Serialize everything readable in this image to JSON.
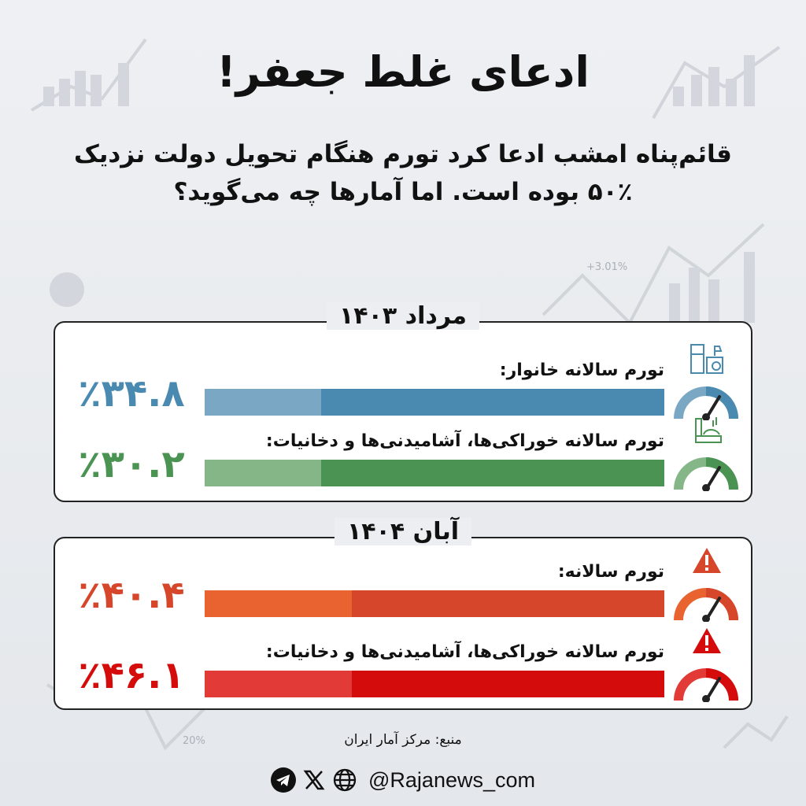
{
  "title": "ادعای غلط جعفر!",
  "subtitle": [
    "قائم‌پناه امشب ادعا کرد تورم هنگام تحویل دولت نزدیک",
    "۵۰٪ بوده است. اما آمارها چه می‌گوید؟"
  ],
  "background_labels": {
    "a": "+3.01%",
    "b": "20%"
  },
  "chart_data": {
    "type": "bar",
    "panels": [
      {
        "title": "مرداد ۱۴۰۳",
        "rows": [
          {
            "label": "تورم سالانه خانوار:",
            "value": 34.8,
            "value_text": "٪۳۴.۸",
            "color": "#4a8ab0",
            "light": "#7aa8c4",
            "icon": "home-appliances-icon"
          },
          {
            "label": "تورم سالانه خوراکی‌ها، آشامیدنی‌ها و دخانیات:",
            "value": 30.2,
            "value_text": "٪۳۰.۲",
            "color": "#4a9352",
            "light": "#84b688",
            "icon": "food-icon"
          }
        ]
      },
      {
        "title": "آبان ۱۴۰۴",
        "rows": [
          {
            "label": "تورم سالانه:",
            "value": 40.4,
            "value_text": "٪۴۰.۴",
            "color": "#d6462a",
            "light": "#e8632f",
            "icon": "warning-icon"
          },
          {
            "label": "تورم سالانه خوراکی‌ها، آشامیدنی‌ها و دخانیات:",
            "value": 46.1,
            "value_text": "٪۴۶.۱",
            "color": "#d40c0c",
            "light": "#e23b37",
            "icon": "warning-icon"
          }
        ]
      }
    ]
  },
  "source": "منبع: مرکز آمار ایران",
  "footer": {
    "handle": "@Rajanews_com",
    "icons": [
      "telegram-icon",
      "x-icon",
      "globe-icon"
    ]
  }
}
